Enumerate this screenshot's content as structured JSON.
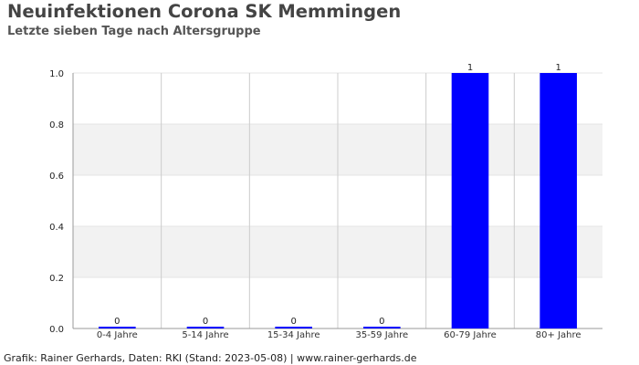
{
  "header": {
    "title": "Neuinfektionen Corona SK Memmingen",
    "subtitle": "Letzte sieben Tage nach Altersgruppe"
  },
  "footer": {
    "credit": "Grafik: Rainer Gerhards, Daten: RKI (Stand: 2023-05-08) | www.rainer-gerhards.de"
  },
  "colors": {
    "bar": "#0000ff",
    "band": "#f2f2f2",
    "grid": "#cccccc",
    "axis": "#999999"
  },
  "chart_data": {
    "type": "bar",
    "title": "Neuinfektionen Corona SK Memmingen",
    "subtitle": "Letzte sieben Tage nach Altersgruppe",
    "categories": [
      "0-4 Jahre",
      "5-14 Jahre",
      "15-34 Jahre",
      "35-59 Jahre",
      "60-79 Jahre",
      "80+ Jahre"
    ],
    "values": [
      0,
      0,
      0,
      0,
      1,
      1
    ],
    "data_labels": [
      "0",
      "0",
      "0",
      "0",
      "1",
      "1"
    ],
    "ylim": [
      0,
      1
    ],
    "yticks": [
      "0.0",
      "0.2",
      "0.4",
      "0.6",
      "0.8",
      "1.0"
    ],
    "xlabel": "",
    "ylabel": "",
    "grid": true,
    "legend": "none"
  }
}
